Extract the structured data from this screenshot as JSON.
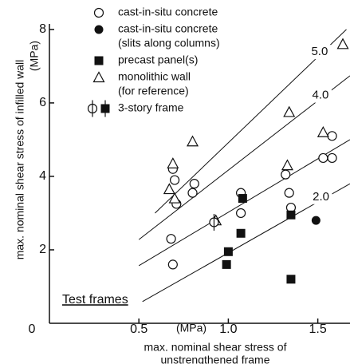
{
  "chart_data": {
    "type": "scatter",
    "y_label": "max. nominal shear stress of infilled wall",
    "y_unit": "(MPa)",
    "x_label": [
      "max. nominal shear stress of",
      "unstrengthened frame"
    ],
    "x_unit": "(MPa)",
    "annotation": "Test frames",
    "xlim": [
      0,
      1.68
    ],
    "ylim": [
      0,
      8.15
    ],
    "xticks": [
      0,
      0.5,
      {
        "value": 1,
        "label": "1.0"
      },
      1.5
    ],
    "yticks": [
      2,
      4,
      6,
      8
    ],
    "series": [
      {
        "name": [
          "cast-in-situ concrete"
        ],
        "marker": "open-circle",
        "x": [
          0.69,
          0.7,
          0.71,
          0.68,
          0.69,
          0.8,
          0.81,
          1.07,
          1.07,
          1.32,
          1.34,
          1.35,
          1.53,
          1.58,
          1.58
        ],
        "values": [
          4.2,
          3.9,
          3.25,
          2.3,
          1.6,
          3.55,
          3.8,
          3.0,
          3.55,
          4.05,
          3.55,
          3.15,
          4.5,
          4.5,
          5.1
        ]
      },
      {
        "name": [
          "cast-in-situ concrete",
          "(slits along columns)"
        ],
        "marker": "filled-circle",
        "x": [
          1.49
        ],
        "values": [
          2.8
        ]
      },
      {
        "name": [
          "precast panel(s)"
        ],
        "marker": "filled-square",
        "x": [
          1.0,
          0.99,
          1.08,
          1.07,
          1.35,
          1.35
        ],
        "values": [
          1.95,
          1.6,
          3.4,
          2.45,
          2.95,
          1.2
        ]
      },
      {
        "name": [
          "monolithic wall",
          "(for reference)"
        ],
        "marker": "open-triangle",
        "x": [
          0.69,
          0.67,
          0.7,
          0.8,
          0.93,
          1.33,
          1.34,
          1.53,
          1.64
        ],
        "values": [
          4.35,
          3.65,
          3.4,
          4.95,
          2.8,
          4.3,
          5.75,
          5.2,
          7.6
        ]
      },
      {
        "name": [
          "3-story frame"
        ],
        "marker": "phi",
        "x": [
          0.92
        ],
        "values": [
          2.75
        ]
      }
    ],
    "lines": [
      {
        "label": "5.0",
        "x": [
          0.59,
          1.66
        ],
        "values": [
          3.0,
          8.0
        ]
      },
      {
        "label": "4.0",
        "x": [
          0.5,
          1.68
        ],
        "values": [
          2.28,
          6.74
        ]
      },
      {
        "x": [
          0.5,
          1.68
        ],
        "values": [
          1.57,
          5.0
        ]
      },
      {
        "label": "2.0",
        "x": [
          0.52,
          1.68
        ],
        "values": [
          0.59,
          3.8
        ]
      }
    ],
    "color": "#111111"
  }
}
